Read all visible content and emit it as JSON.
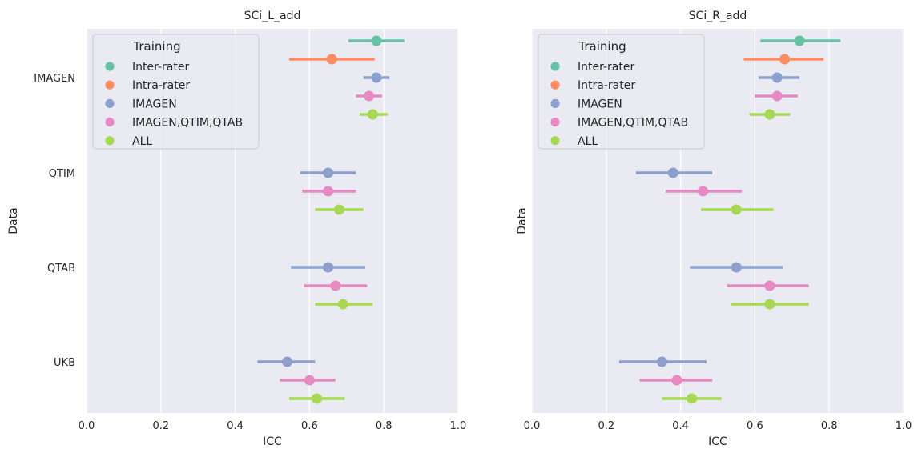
{
  "chart_data": [
    {
      "type": "pointplot",
      "title": "SCi_L_add",
      "xlabel": "ICC",
      "ylabel": "Data",
      "xlim": [
        0.0,
        1.0
      ],
      "xticks": [
        "0.0",
        "0.2",
        "0.4",
        "0.6",
        "0.8",
        "1.0"
      ],
      "categories": [
        "IMAGEN",
        "QTIM",
        "QTAB",
        "UKB"
      ],
      "legend": {
        "title": "Training",
        "placement": "top-left"
      },
      "grid": true,
      "series": [
        {
          "name": "Inter-rater",
          "color": "#66c2a5",
          "points": [
            {
              "category": "IMAGEN",
              "x": 0.78,
              "lo": 0.705,
              "hi": 0.855
            }
          ]
        },
        {
          "name": "Intra-rater",
          "color": "#fc8d62",
          "points": [
            {
              "category": "IMAGEN",
              "x": 0.66,
              "lo": 0.545,
              "hi": 0.775
            }
          ]
        },
        {
          "name": "IMAGEN",
          "color": "#8da0cb",
          "points": [
            {
              "category": "IMAGEN",
              "x": 0.78,
              "lo": 0.745,
              "hi": 0.815
            },
            {
              "category": "QTIM",
              "x": 0.65,
              "lo": 0.575,
              "hi": 0.725
            },
            {
              "category": "QTAB",
              "x": 0.65,
              "lo": 0.55,
              "hi": 0.75
            },
            {
              "category": "UKB",
              "x": 0.54,
              "lo": 0.46,
              "hi": 0.615
            }
          ]
        },
        {
          "name": "IMAGEN,QTIM,QTAB",
          "color": "#e78ac3",
          "points": [
            {
              "category": "IMAGEN",
              "x": 0.76,
              "lo": 0.725,
              "hi": 0.795
            },
            {
              "category": "QTIM",
              "x": 0.65,
              "lo": 0.58,
              "hi": 0.725
            },
            {
              "category": "QTAB",
              "x": 0.67,
              "lo": 0.585,
              "hi": 0.755
            },
            {
              "category": "UKB",
              "x": 0.6,
              "lo": 0.52,
              "hi": 0.67
            }
          ]
        },
        {
          "name": "ALL",
          "color": "#a6d854",
          "points": [
            {
              "category": "IMAGEN",
              "x": 0.77,
              "lo": 0.735,
              "hi": 0.81
            },
            {
              "category": "QTIM",
              "x": 0.68,
              "lo": 0.615,
              "hi": 0.745
            },
            {
              "category": "QTAB",
              "x": 0.69,
              "lo": 0.615,
              "hi": 0.77
            },
            {
              "category": "UKB",
              "x": 0.62,
              "lo": 0.545,
              "hi": 0.695
            }
          ]
        }
      ]
    },
    {
      "type": "pointplot",
      "title": "SCi_R_add",
      "xlabel": "ICC",
      "ylabel": "Data",
      "xlim": [
        0.0,
        1.0
      ],
      "xticks": [
        "0.0",
        "0.2",
        "0.4",
        "0.6",
        "0.8",
        "1.0"
      ],
      "categories": [
        "IMAGEN",
        "QTIM",
        "QTAB",
        "UKB"
      ],
      "legend": {
        "title": "Training",
        "placement": "top-left"
      },
      "grid": true,
      "series": [
        {
          "name": "Inter-rater",
          "color": "#66c2a5",
          "points": [
            {
              "category": "IMAGEN",
              "x": 0.72,
              "lo": 0.615,
              "hi": 0.83
            }
          ]
        },
        {
          "name": "Intra-rater",
          "color": "#fc8d62",
          "points": [
            {
              "category": "IMAGEN",
              "x": 0.68,
              "lo": 0.57,
              "hi": 0.785
            }
          ]
        },
        {
          "name": "IMAGEN",
          "color": "#8da0cb",
          "points": [
            {
              "category": "IMAGEN",
              "x": 0.66,
              "lo": 0.61,
              "hi": 0.72
            },
            {
              "category": "QTIM",
              "x": 0.38,
              "lo": 0.28,
              "hi": 0.485
            },
            {
              "category": "QTAB",
              "x": 0.55,
              "lo": 0.425,
              "hi": 0.675
            },
            {
              "category": "UKB",
              "x": 0.35,
              "lo": 0.235,
              "hi": 0.47
            }
          ]
        },
        {
          "name": "IMAGEN,QTIM,QTAB",
          "color": "#e78ac3",
          "points": [
            {
              "category": "IMAGEN",
              "x": 0.66,
              "lo": 0.6,
              "hi": 0.715
            },
            {
              "category": "QTIM",
              "x": 0.46,
              "lo": 0.36,
              "hi": 0.565
            },
            {
              "category": "QTAB",
              "x": 0.64,
              "lo": 0.525,
              "hi": 0.745
            },
            {
              "category": "UKB",
              "x": 0.39,
              "lo": 0.29,
              "hi": 0.485
            }
          ]
        },
        {
          "name": "ALL",
          "color": "#a6d854",
          "points": [
            {
              "category": "IMAGEN",
              "x": 0.64,
              "lo": 0.585,
              "hi": 0.695
            },
            {
              "category": "QTIM",
              "x": 0.55,
              "lo": 0.455,
              "hi": 0.65
            },
            {
              "category": "QTAB",
              "x": 0.64,
              "lo": 0.535,
              "hi": 0.745
            },
            {
              "category": "UKB",
              "x": 0.43,
              "lo": 0.35,
              "hi": 0.51
            }
          ]
        }
      ]
    }
  ]
}
